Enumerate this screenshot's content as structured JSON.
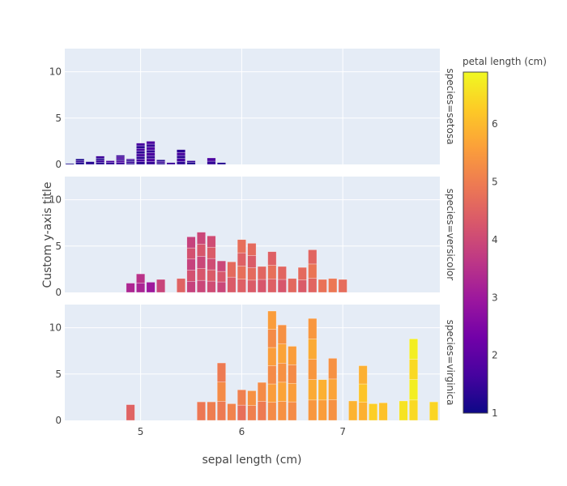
{
  "chart_data": {
    "type": "bar",
    "subtype": "faceted-stacked-histogram",
    "title": "",
    "xlabel": "sepal length (cm)",
    "ylabel": "Custom y-axis title",
    "xlim": [
      4.25,
      7.96
    ],
    "ylim": [
      0,
      12.5
    ],
    "x_ticks": [
      5,
      6,
      7
    ],
    "y_ticks": [
      0,
      5,
      10
    ],
    "grid": true,
    "bin_width": 0.1,
    "colorbar": {
      "title": "petal length (cm)",
      "range": [
        1,
        6.9
      ],
      "ticks": [
        1,
        2,
        3,
        4,
        5,
        6
      ],
      "colorscale": [
        "#0d0887",
        "#46039f",
        "#7201a8",
        "#9c179e",
        "#bd3786",
        "#d8576b",
        "#ed7953",
        "#fb9f3a",
        "#fdca26",
        "#f0f921"
      ],
      "position": "right"
    },
    "facets": [
      {
        "label": "species=setosa",
        "x": [
          4.3,
          4.4,
          4.5,
          4.6,
          4.7,
          4.8,
          4.9,
          5.0,
          5.1,
          5.2,
          5.3,
          5.4,
          5.5,
          5.7,
          5.8
        ],
        "values": [
          0.1,
          0.6,
          0.3,
          0.9,
          0.4,
          1.0,
          0.6,
          2.3,
          2.5,
          0.5,
          0.2,
          1.6,
          0.4,
          0.7,
          0.2
        ],
        "segments": [
          1,
          3,
          1,
          4,
          2,
          5,
          4,
          8,
          8,
          3,
          1,
          5,
          2,
          2,
          1
        ],
        "color_value": [
          1.1,
          1.3,
          1.3,
          1.4,
          1.5,
          1.6,
          1.4,
          1.5,
          1.6,
          1.4,
          1.5,
          1.5,
          1.3,
          1.6,
          1.2
        ]
      },
      {
        "label": "species=versicolor",
        "x": [
          4.9,
          5.0,
          5.1,
          5.2,
          5.4,
          5.5,
          5.6,
          5.7,
          5.8,
          5.9,
          6.0,
          6.1,
          6.2,
          6.3,
          6.4,
          6.5,
          6.6,
          6.7,
          6.8,
          6.9,
          7.0
        ],
        "values": [
          1.0,
          2.0,
          1.1,
          1.4,
          1.5,
          6.0,
          6.5,
          6.1,
          3.4,
          3.3,
          5.7,
          5.3,
          2.8,
          4.4,
          2.8,
          1.5,
          2.7,
          4.6,
          1.4,
          1.5,
          1.4
        ],
        "segments": [
          1,
          2,
          1,
          1,
          1,
          5,
          5,
          5,
          3,
          2,
          4,
          4,
          2,
          3,
          2,
          1,
          2,
          3,
          1,
          1,
          1
        ],
        "color_value": [
          3.3,
          3.4,
          3.0,
          3.9,
          4.5,
          4.0,
          4.1,
          4.2,
          4.1,
          4.5,
          4.6,
          4.5,
          4.4,
          4.6,
          4.4,
          4.6,
          4.5,
          4.7,
          4.8,
          4.9,
          4.7
        ]
      },
      {
        "label": "species=virginica",
        "x": [
          4.9,
          5.6,
          5.7,
          5.8,
          5.9,
          6.0,
          6.1,
          6.2,
          6.3,
          6.4,
          6.5,
          6.7,
          6.8,
          6.9,
          7.1,
          7.2,
          7.3,
          7.4,
          7.6,
          7.7,
          7.9
        ],
        "values": [
          1.7,
          2.0,
          2.0,
          6.2,
          1.8,
          3.3,
          3.2,
          4.1,
          11.8,
          10.3,
          8.0,
          11.0,
          4.4,
          6.7,
          2.1,
          5.9,
          1.8,
          1.9,
          2.1,
          8.8,
          2.0
        ],
        "segments": [
          1,
          1,
          1,
          3,
          1,
          2,
          2,
          2,
          6,
          5,
          4,
          5,
          2,
          3,
          1,
          3,
          1,
          1,
          1,
          4,
          1
        ],
        "color_value": [
          4.5,
          4.9,
          5.0,
          5.1,
          5.1,
          4.9,
          5.2,
          5.1,
          5.4,
          5.5,
          5.4,
          5.6,
          5.7,
          5.5,
          5.9,
          6.0,
          6.3,
          6.1,
          6.6,
          6.6,
          6.4
        ]
      }
    ]
  }
}
